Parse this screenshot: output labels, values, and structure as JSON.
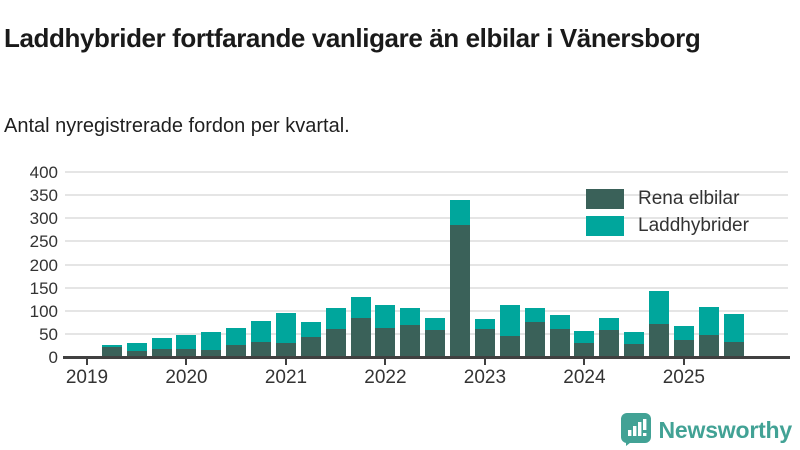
{
  "header": {
    "title": "Laddhybrider fortfarande vanligare än elbilar i Vänersborg",
    "subtitle": "Antal nyregistrerade fordon per kvartal."
  },
  "colors": {
    "elbilar": "#3a6159",
    "laddhybrider": "#00a69c",
    "axis": "#404040",
    "grid": "#e5e5e5",
    "tick_text": "#333333",
    "title_text": "#1a1a1a",
    "brand": "#42a295"
  },
  "legend": {
    "items": [
      {
        "label": "Rena elbilar",
        "color": "#3a6159"
      },
      {
        "label": "Laddhybrider",
        "color": "#00a69c"
      }
    ]
  },
  "footer": {
    "brand_name": "Newsworthy"
  },
  "chart_data": {
    "type": "bar",
    "stacked": true,
    "title": "Laddhybrider fortfarande vanligare än elbilar i Vänersborg",
    "subtitle": "Antal nyregistrerade fordon per kvartal.",
    "x": [
      "2019-Q1",
      "2019-Q2",
      "2019-Q3",
      "2019-Q4",
      "2020-Q1",
      "2020-Q2",
      "2020-Q3",
      "2020-Q4",
      "2021-Q1",
      "2021-Q2",
      "2021-Q3",
      "2021-Q4",
      "2022-Q1",
      "2022-Q2",
      "2022-Q3",
      "2022-Q4",
      "2023-Q1",
      "2023-Q2",
      "2023-Q3",
      "2023-Q4",
      "2024-Q1",
      "2024-Q2",
      "2024-Q3",
      "2024-Q4",
      "2025-Q1",
      "2025-Q2",
      "2025-Q3"
    ],
    "x_tick_labels": [
      "2019",
      "2020",
      "2021",
      "2022",
      "2023",
      "2024",
      "2025"
    ],
    "series": [
      {
        "name": "Rena elbilar",
        "color": "#3a6159",
        "values": [
          0,
          22,
          14,
          18,
          17,
          16,
          25,
          32,
          30,
          44,
          60,
          84,
          63,
          69,
          59,
          285,
          60,
          46,
          75,
          60,
          31,
          58,
          29,
          72,
          36,
          47,
          33
        ]
      },
      {
        "name": "Laddhybrider",
        "color": "#00a69c",
        "values": [
          0,
          3,
          17,
          23,
          31,
          38,
          37,
          45,
          65,
          31,
          46,
          45,
          49,
          38,
          25,
          55,
          23,
          66,
          32,
          31,
          25,
          26,
          25,
          71,
          32,
          61,
          59
        ]
      }
    ],
    "ylim": [
      0,
      400
    ],
    "y_ticks": [
      0,
      50,
      100,
      150,
      200,
      250,
      300,
      350,
      400
    ],
    "grid": true,
    "legend_position": "top-right"
  }
}
